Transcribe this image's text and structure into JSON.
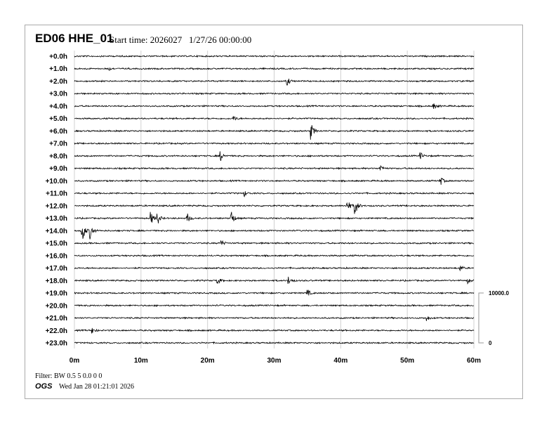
{
  "header": {
    "title": "ED06 HHE_01",
    "subtitle": "Start time: 2026027   1/27/26 00:00:00"
  },
  "footer": {
    "filter": "Filter: BW 0.5 5 0.0 0 0",
    "org": "OGS",
    "date": "Wed Jan 28 01:21:01 2026"
  },
  "chart_data": {
    "type": "helicorder",
    "row_labels": [
      "+0.0h",
      "+1.0h",
      "+2.0h",
      "+3.0h",
      "+4.0h",
      "+5.0h",
      "+6.0h",
      "+7.0h",
      "+8.0h",
      "+9.0h",
      "+10.0h",
      "+11.0h",
      "+12.0h",
      "+13.0h",
      "+14.0h",
      "+15.0h",
      "+16.0h",
      "+17.0h",
      "+18.0h",
      "+19.0h",
      "+20.0h",
      "+21.0h",
      "+22.0h",
      "+23.0h"
    ],
    "x_ticks": [
      "0m",
      "10m",
      "20m",
      "30m",
      "40m",
      "50m",
      "60m"
    ],
    "xlim": [
      0,
      60
    ],
    "grid": true,
    "scale_bar": {
      "top": "10000.0",
      "bottom": "0"
    },
    "trace_color": "#000000",
    "grid_color": "#d0d0d0",
    "events": [
      {
        "hour": 1,
        "minute": 5,
        "amp": 0.2
      },
      {
        "hour": 2,
        "minute": 32,
        "amp": 0.3
      },
      {
        "hour": 4,
        "minute": 54,
        "amp": 0.2
      },
      {
        "hour": 5,
        "minute": 24,
        "amp": 0.2
      },
      {
        "hour": 6,
        "minute": 35.5,
        "amp": 0.7
      },
      {
        "hour": 8,
        "minute": 22,
        "amp": 0.35
      },
      {
        "hour": 8,
        "minute": 52,
        "amp": 0.25
      },
      {
        "hour": 9,
        "minute": 46,
        "amp": 0.25
      },
      {
        "hour": 10,
        "minute": 55,
        "amp": 0.35
      },
      {
        "hour": 11,
        "minute": 25.5,
        "amp": 0.25
      },
      {
        "hour": 12,
        "minute": 41,
        "amp": 0.5
      },
      {
        "hour": 12,
        "minute": 42.2,
        "amp": 0.7
      },
      {
        "hour": 13,
        "minute": 11.5,
        "amp": 0.5
      },
      {
        "hour": 13,
        "minute": 12.5,
        "amp": 0.45
      },
      {
        "hour": 13,
        "minute": 17,
        "amp": 0.35
      },
      {
        "hour": 13,
        "minute": 23.5,
        "amp": 0.8
      },
      {
        "hour": 14,
        "minute": 1.2,
        "amp": 0.9
      },
      {
        "hour": 14,
        "minute": 2.4,
        "amp": 0.6
      },
      {
        "hour": 15,
        "minute": 22,
        "amp": 0.3
      },
      {
        "hour": 17,
        "minute": 58,
        "amp": 0.2
      },
      {
        "hour": 18,
        "minute": 21.5,
        "amp": 0.3
      },
      {
        "hour": 18,
        "minute": 32.2,
        "amp": 0.3
      },
      {
        "hour": 18,
        "minute": 59,
        "amp": 0.25
      },
      {
        "hour": 19,
        "minute": 35,
        "amp": 0.3
      },
      {
        "hour": 21,
        "minute": 53,
        "amp": 0.2
      },
      {
        "hour": 22,
        "minute": 2.7,
        "amp": 0.25
      }
    ]
  }
}
